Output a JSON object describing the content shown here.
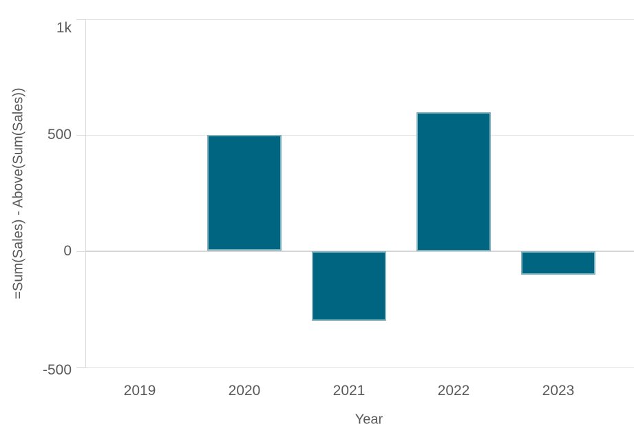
{
  "chart_data": {
    "type": "bar",
    "title": "",
    "xlabel": "Year",
    "ylabel": "=Sum(Sales) - Above(Sum(Sales))",
    "categories": [
      "2019",
      "2020",
      "2021",
      "2022",
      "2023"
    ],
    "values": [
      null,
      500,
      -300,
      600,
      -100
    ],
    "ylim": [
      -500,
      1000
    ],
    "yticks": [
      {
        "label": "1k",
        "value": 1000
      },
      {
        "label": "500",
        "value": 500
      },
      {
        "label": "0",
        "value": 0
      },
      {
        "label": "-500",
        "value": -500
      }
    ],
    "grid": true,
    "legend": false,
    "colors": {
      "bar_fill": "#006580",
      "bar_stroke": "rgba(255,255,255,0.5)",
      "gridline": "#e4e4e4",
      "zero_line": "#d6d6d6",
      "axis_line": "#d9d9d9",
      "text": "#595959",
      "background": "#ffffff"
    }
  }
}
